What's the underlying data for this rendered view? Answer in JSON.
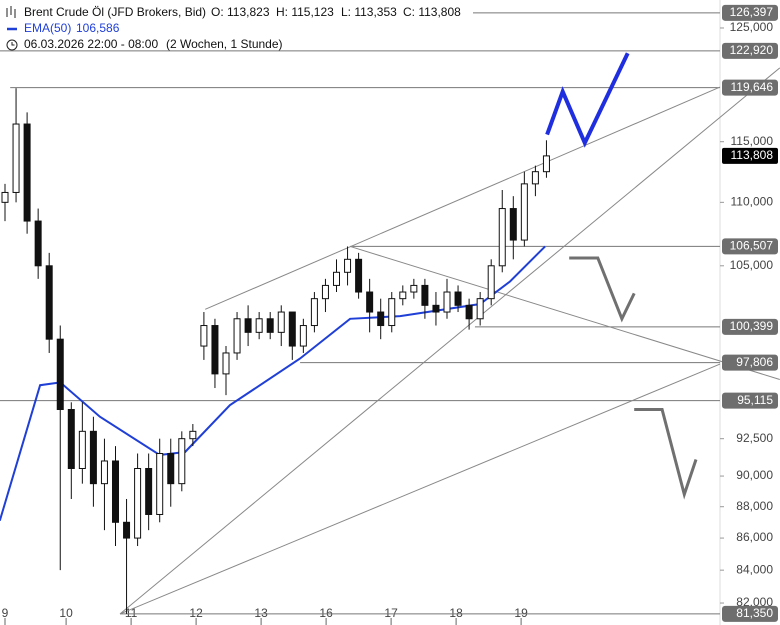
{
  "chart_data": {
    "type": "candlestick",
    "title": "Brent Crude Öl (JFD Brokers, Bid)",
    "ohlc_text": [
      "O: 113,823",
      "H: 115,123",
      "L: 113,353",
      "C: 113,808"
    ],
    "ema_label": "EMA(50)",
    "ema_value_label": "106,586",
    "subtitle": "06.03.2026 22:00 - 08:00",
    "range_note": "(2 Wochen, 1 Stunde)",
    "log_scale": true,
    "ylim": [
      80.69,
      127.59
    ],
    "xlim": [
      -0.08,
      11.0
    ],
    "yticks": [
      {
        "value": 125,
        "label": "125,000"
      },
      {
        "value": 115,
        "label": "115,000"
      },
      {
        "value": 110,
        "label": "110,000"
      },
      {
        "value": 105,
        "label": "105,000"
      },
      {
        "value": 92.5,
        "label": "92,500"
      },
      {
        "value": 90,
        "label": "90,000"
      },
      {
        "value": 88,
        "label": "88,000"
      },
      {
        "value": 86,
        "label": "86,000"
      },
      {
        "value": 84,
        "label": "84,000"
      },
      {
        "value": 82,
        "label": "82,000"
      }
    ],
    "xticks": [
      {
        "value": 0,
        "label": "9"
      },
      {
        "value": 0.94,
        "label": "10"
      },
      {
        "value": 1.94,
        "label": "11"
      },
      {
        "value": 2.94,
        "label": "12"
      },
      {
        "value": 3.94,
        "label": "13"
      },
      {
        "value": 4.94,
        "label": "16"
      },
      {
        "value": 5.94,
        "label": "17"
      },
      {
        "value": 6.94,
        "label": "18"
      },
      {
        "value": 7.94,
        "label": "19"
      }
    ],
    "x": [
      0.0,
      0.17,
      0.34,
      0.51,
      0.68,
      0.85,
      1.02,
      1.19,
      1.36,
      1.53,
      1.7,
      1.87,
      2.04,
      2.21,
      2.38,
      2.55,
      2.72,
      2.89,
      3.06,
      3.23,
      3.4,
      3.57,
      3.74,
      3.91,
      4.08,
      4.25,
      4.42,
      4.59,
      4.76,
      4.93,
      5.1,
      5.27,
      5.44,
      5.61,
      5.78,
      5.95,
      6.12,
      6.29,
      6.46,
      6.63,
      6.8,
      6.97,
      7.14,
      7.31,
      7.48,
      7.65,
      7.82,
      7.99,
      8.16,
      8.33
    ],
    "open": [
      110.0,
      110.8,
      116.5,
      108.5,
      105.0,
      99.5,
      94.5,
      90.5,
      93.0,
      89.5,
      91.0,
      87.0,
      86.0,
      90.5,
      87.5,
      91.5,
      89.5,
      92.5,
      99.0,
      100.5,
      97.0,
      98.5,
      101.0,
      100.0,
      101.0,
      100.0,
      101.5,
      99.0,
      100.5,
      102.5,
      103.5,
      104.5,
      105.5,
      103.0,
      101.5,
      100.5,
      102.5,
      103.0,
      103.5,
      102.0,
      101.5,
      103.0,
      102.0,
      101.0,
      102.5,
      105.0,
      109.5,
      107.0,
      111.5,
      112.5
    ],
    "high": [
      111.5,
      119.6,
      117.5,
      109.5,
      106.0,
      100.5,
      95.0,
      95.0,
      94.0,
      92.5,
      92.0,
      88.5,
      91.5,
      91.5,
      92.5,
      92.5,
      93.0,
      93.5,
      101.5,
      101.0,
      99.0,
      101.5,
      102.0,
      101.5,
      101.5,
      102.0,
      101.5,
      101.0,
      103.0,
      104.0,
      105.5,
      106.5,
      106.0,
      104.0,
      102.5,
      103.0,
      103.5,
      104.0,
      104.0,
      103.0,
      104.0,
      103.5,
      102.5,
      103.0,
      105.5,
      111.0,
      110.5,
      112.5,
      113.0,
      115.12
    ],
    "low": [
      108.5,
      110.0,
      107.5,
      104.0,
      98.5,
      84.0,
      88.5,
      89.5,
      88.0,
      86.5,
      85.5,
      81.35,
      85.5,
      86.5,
      87.0,
      88.0,
      89.0,
      92.0,
      98.0,
      96.0,
      95.5,
      98.0,
      99.0,
      99.5,
      99.5,
      99.0,
      98.0,
      98.5,
      100.0,
      101.5,
      103.0,
      103.5,
      102.5,
      100.0,
      99.5,
      100.0,
      102.0,
      102.5,
      101.0,
      100.5,
      101.0,
      101.5,
      100.2,
      100.5,
      102.0,
      104.5,
      105.5,
      106.5,
      110.5,
      112.0
    ],
    "close": [
      110.8,
      116.5,
      108.5,
      105.0,
      99.5,
      94.5,
      90.5,
      93.0,
      89.5,
      91.0,
      87.0,
      86.0,
      90.5,
      87.5,
      91.5,
      89.5,
      92.5,
      93.0,
      100.5,
      97.0,
      98.5,
      101.0,
      100.0,
      101.0,
      100.0,
      101.5,
      99.0,
      100.5,
      102.5,
      103.5,
      104.5,
      105.5,
      103.0,
      101.5,
      100.5,
      102.5,
      103.0,
      103.5,
      102.0,
      101.5,
      103.0,
      102.0,
      101.0,
      102.5,
      105.0,
      109.5,
      107.0,
      111.5,
      112.5,
      113.81
    ],
    "ema": {
      "color": "#1f3fd6",
      "x": [
        -0.08,
        0.54,
        0.85,
        1.46,
        2.38,
        2.77,
        3.46,
        4.54,
        5.31,
        6.08,
        7.31,
        7.77,
        8.31
      ],
      "values": [
        87.1,
        96.2,
        96.4,
        94.0,
        91.4,
        91.6,
        94.8,
        98.1,
        101.0,
        101.2,
        102.1,
        103.8,
        106.5
      ]
    },
    "levels": [
      {
        "value": 126.397,
        "label": "126,397",
        "from": 7.2
      },
      {
        "value": 122.92,
        "label": "122,920",
        "from": -0.08
      },
      {
        "value": 119.646,
        "label": "119,646",
        "from": 0.08
      },
      {
        "value": 106.507,
        "label": "106,507",
        "from": 5.31
      },
      {
        "value": 100.399,
        "label": "100,399",
        "from": 7.23
      },
      {
        "value": 97.806,
        "label": "97,806",
        "from": 4.54
      },
      {
        "value": 95.115,
        "label": "95,115",
        "from": -0.08
      },
      {
        "value": 81.35,
        "label": "81,350",
        "from": 1.77
      }
    ],
    "last_price": {
      "value": 113.808,
      "label": "113,808"
    },
    "trendlines": [
      {
        "x": [
          3.08,
          11.0
        ],
        "y": [
          101.7,
          119.7
        ]
      },
      {
        "x": [
          1.77,
          11.92
        ],
        "y": [
          81.35,
          121.4
        ]
      },
      {
        "x": [
          1.77,
          11.0
        ],
        "y": [
          81.35,
          97.7
        ]
      },
      {
        "x": [
          5.31,
          11.92
        ],
        "y": [
          106.5,
          96.6
        ]
      }
    ],
    "projections": [
      {
        "color": "#1f2fe0",
        "x": [
          8.34,
          8.58,
          8.92,
          9.58
        ],
        "y": [
          115.6,
          119.3,
          114.9,
          122.7
        ]
      },
      {
        "color": "#707070",
        "x": [
          8.68,
          9.12,
          9.49,
          9.68
        ],
        "y": [
          105.6,
          105.6,
          101.0,
          102.9
        ]
      },
      {
        "color": "#707070",
        "x": [
          9.68,
          10.11,
          10.45,
          10.63
        ],
        "y": [
          94.5,
          94.5,
          88.8,
          91.1
        ]
      }
    ]
  }
}
